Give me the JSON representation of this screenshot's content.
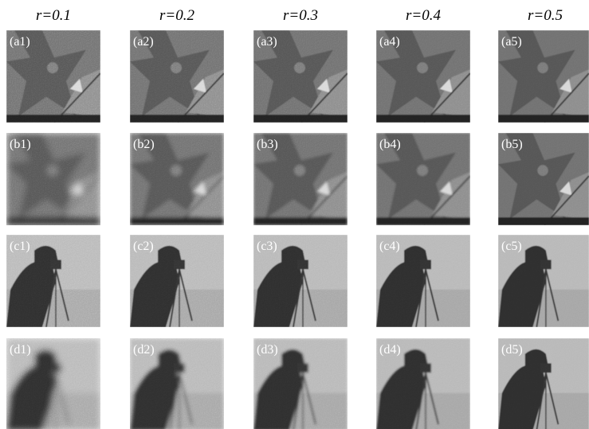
{
  "columns": [
    "r=0.1",
    "r=0.2",
    "r=0.3",
    "r=0.4",
    "r=0.5"
  ],
  "panels": [
    [
      "(a1)",
      "(a2)",
      "(a3)",
      "(a4)",
      "(a5)"
    ],
    [
      "(b1)",
      "(b2)",
      "(b3)",
      "(b4)",
      "(b5)"
    ],
    [
      "(c1)",
      "(c2)",
      "(c3)",
      "(c4)",
      "(c5)"
    ],
    [
      "(d1)",
      "(d2)",
      "(d3)",
      "(d4)",
      "(d5)"
    ]
  ]
}
